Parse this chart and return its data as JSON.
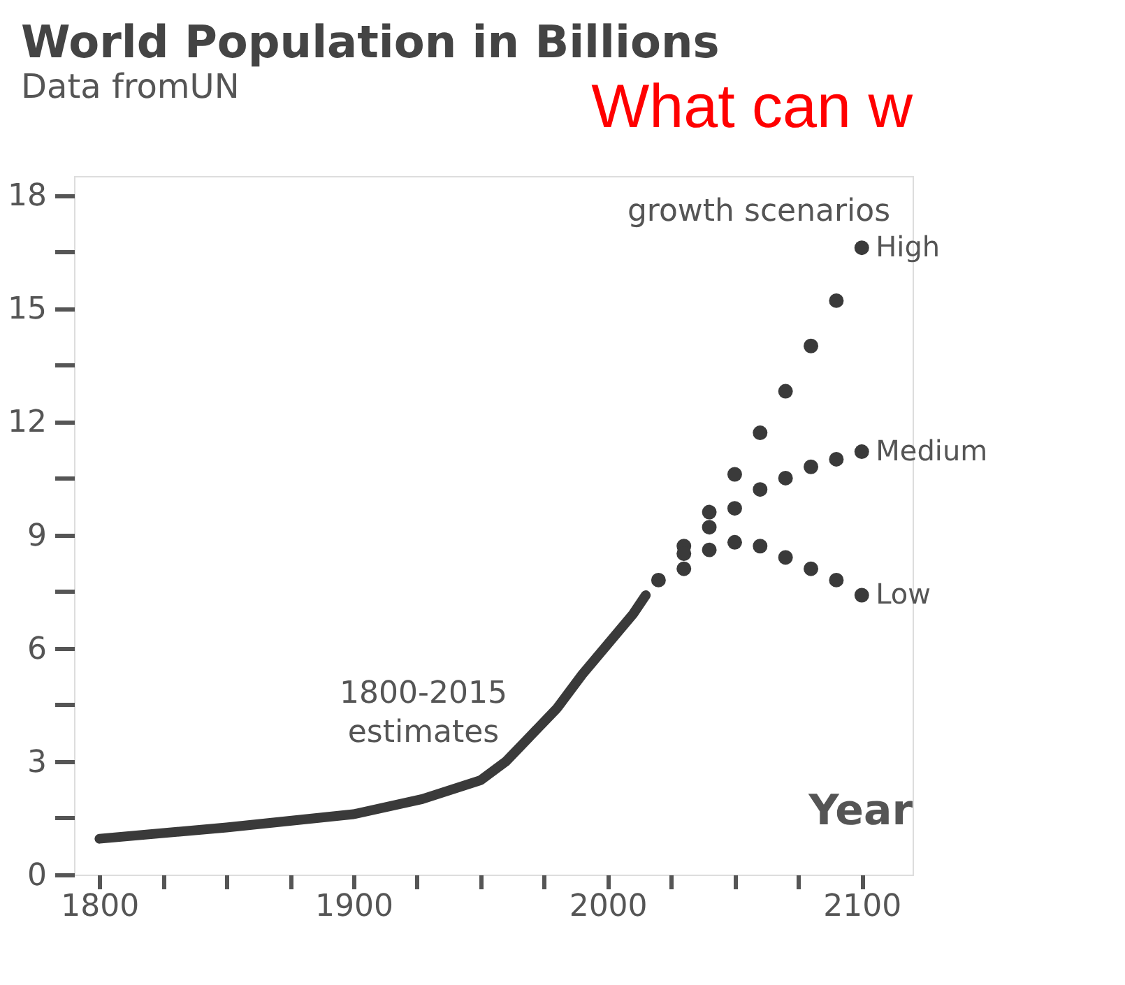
{
  "chart_data": {
    "type": "line",
    "title": "World Population in Billions",
    "subtitle": "Data fromUN",
    "xlabel": "Year",
    "annotations": [
      "1800-2015 estimates",
      "growth scenarios",
      "What can w"
    ],
    "series": [
      {
        "name": null,
        "color": "#3a3a3a",
        "x": [
          1800,
          1850,
          1900,
          1927,
          1950,
          1960,
          1970,
          1980,
          1990,
          2000,
          2010,
          2015
        ],
        "values": [
          0.95,
          1.25,
          1.6,
          2.0,
          2.5,
          3.0,
          3.7,
          4.4,
          5.3,
          6.1,
          6.9,
          7.4
        ]
      },
      {
        "name": "High",
        "type": "scatter",
        "marker": "circle",
        "color": "#3a3a3a",
        "x": [
          2020,
          2030,
          2040,
          2050,
          2060,
          2070,
          2080,
          2090,
          2100
        ],
        "values": [
          7.8,
          8.7,
          9.6,
          10.6,
          11.7,
          12.8,
          14.0,
          15.2,
          16.6
        ]
      },
      {
        "name": "Medium",
        "type": "scatter",
        "marker": "circle",
        "color": "#3a3a3a",
        "x": [
          2030,
          2040,
          2050,
          2060,
          2070,
          2080,
          2090,
          2100
        ],
        "values": [
          8.5,
          9.2,
          9.7,
          10.2,
          10.5,
          10.8,
          11.0,
          11.2
        ]
      },
      {
        "name": "Low",
        "type": "scatter",
        "marker": "circle",
        "color": "#3a3a3a",
        "x": [
          2030,
          2040,
          2050,
          2060,
          2070,
          2080,
          2090,
          2100
        ],
        "values": [
          8.1,
          8.6,
          8.8,
          8.7,
          8.4,
          8.1,
          7.8,
          7.4
        ]
      }
    ],
    "xlim": [
      1790,
      2120
    ],
    "ylim": [
      0,
      18.5
    ],
    "xticks": [
      1800,
      {
        "value": 1825,
        "label": null
      },
      {
        "value": 1850,
        "label": null
      },
      {
        "value": 1875,
        "label": null
      },
      1900,
      {
        "value": 1925,
        "label": null
      },
      {
        "value": 1950,
        "label": null
      },
      {
        "value": 1975,
        "label": null
      },
      2000,
      {
        "value": 2025,
        "label": null
      },
      {
        "value": 2050,
        "label": null
      },
      {
        "value": 2075,
        "label": null
      },
      2100
    ],
    "yticks": [
      0,
      {
        "value": 1.5,
        "label": null
      },
      3,
      {
        "value": 4.5,
        "label": null
      },
      6,
      {
        "value": 7.5,
        "label": null
      },
      9,
      {
        "value": 10.5,
        "label": null
      },
      12,
      {
        "value": 13.5,
        "label": null
      },
      15,
      {
        "value": 16.5,
        "label": null
      },
      18
    ],
    "grid": false
  }
}
